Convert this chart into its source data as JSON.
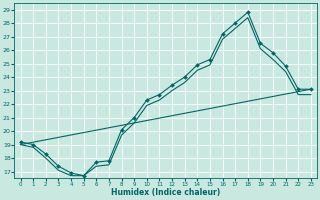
{
  "title": "",
  "xlabel": "Humidex (Indice chaleur)",
  "background_color": "#c8e8e0",
  "grid_color": "#ffffff",
  "line_color": "#006666",
  "xlim": [
    -0.5,
    23.5
  ],
  "ylim": [
    16.5,
    29.5
  ],
  "xticks": [
    0,
    1,
    2,
    3,
    4,
    5,
    6,
    7,
    8,
    9,
    10,
    11,
    12,
    13,
    14,
    15,
    16,
    17,
    18,
    19,
    20,
    21,
    22,
    23
  ],
  "yticks": [
    17,
    18,
    19,
    20,
    21,
    22,
    23,
    24,
    25,
    26,
    27,
    28,
    29
  ],
  "series_markers": {
    "x": [
      0,
      1,
      2,
      3,
      4,
      5,
      6,
      7,
      8,
      9,
      10,
      11,
      12,
      13,
      14,
      15,
      16,
      17,
      18,
      19,
      20,
      21,
      22,
      23
    ],
    "y": [
      19.2,
      19.0,
      18.3,
      17.4,
      16.9,
      16.7,
      17.7,
      17.8,
      20.1,
      21.0,
      22.3,
      22.7,
      23.4,
      24.0,
      24.9,
      25.3,
      27.2,
      28.0,
      28.8,
      26.5,
      25.8,
      24.8,
      23.1,
      23.1
    ]
  },
  "series_lower": {
    "x": [
      0,
      1,
      2,
      3,
      4,
      5,
      6,
      7,
      8,
      9,
      10,
      11,
      12,
      13,
      14,
      15,
      16,
      17,
      18,
      19,
      20,
      21,
      22,
      23
    ],
    "y": [
      19.0,
      18.8,
      18.0,
      17.1,
      16.7,
      16.7,
      17.4,
      17.5,
      19.7,
      20.6,
      21.9,
      22.3,
      23.0,
      23.6,
      24.5,
      24.9,
      26.8,
      27.6,
      28.4,
      26.1,
      25.3,
      24.4,
      22.7,
      22.7
    ]
  },
  "series_diagonal": {
    "x": [
      0,
      23
    ],
    "y": [
      19.0,
      23.1
    ]
  }
}
